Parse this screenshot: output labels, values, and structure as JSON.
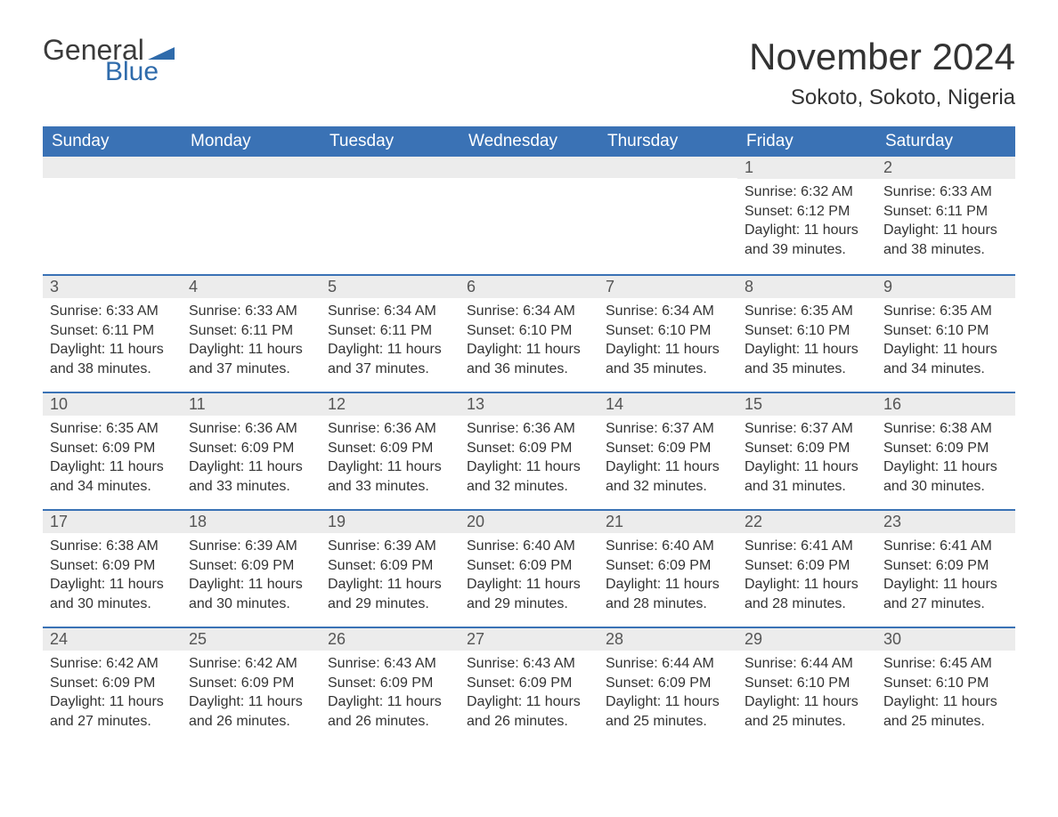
{
  "logo": {
    "word1": "General",
    "word2": "Blue"
  },
  "title": "November 2024",
  "location": "Sokoto, Sokoto, Nigeria",
  "colors": {
    "header_bg": "#3a72b5",
    "header_text": "#ffffff",
    "daynum_bg": "#ececec",
    "border_top": "#3a72b5",
    "body_text": "#333333",
    "logo_gray": "#3b3b3b",
    "logo_blue": "#2f6bab"
  },
  "day_headers": [
    "Sunday",
    "Monday",
    "Tuesday",
    "Wednesday",
    "Thursday",
    "Friday",
    "Saturday"
  ],
  "weeks": [
    [
      null,
      null,
      null,
      null,
      null,
      {
        "n": "1",
        "sunrise": "Sunrise: 6:32 AM",
        "sunset": "Sunset: 6:12 PM",
        "daylight1": "Daylight: 11 hours",
        "daylight2": "and 39 minutes."
      },
      {
        "n": "2",
        "sunrise": "Sunrise: 6:33 AM",
        "sunset": "Sunset: 6:11 PM",
        "daylight1": "Daylight: 11 hours",
        "daylight2": "and 38 minutes."
      }
    ],
    [
      {
        "n": "3",
        "sunrise": "Sunrise: 6:33 AM",
        "sunset": "Sunset: 6:11 PM",
        "daylight1": "Daylight: 11 hours",
        "daylight2": "and 38 minutes."
      },
      {
        "n": "4",
        "sunrise": "Sunrise: 6:33 AM",
        "sunset": "Sunset: 6:11 PM",
        "daylight1": "Daylight: 11 hours",
        "daylight2": "and 37 minutes."
      },
      {
        "n": "5",
        "sunrise": "Sunrise: 6:34 AM",
        "sunset": "Sunset: 6:11 PM",
        "daylight1": "Daylight: 11 hours",
        "daylight2": "and 37 minutes."
      },
      {
        "n": "6",
        "sunrise": "Sunrise: 6:34 AM",
        "sunset": "Sunset: 6:10 PM",
        "daylight1": "Daylight: 11 hours",
        "daylight2": "and 36 minutes."
      },
      {
        "n": "7",
        "sunrise": "Sunrise: 6:34 AM",
        "sunset": "Sunset: 6:10 PM",
        "daylight1": "Daylight: 11 hours",
        "daylight2": "and 35 minutes."
      },
      {
        "n": "8",
        "sunrise": "Sunrise: 6:35 AM",
        "sunset": "Sunset: 6:10 PM",
        "daylight1": "Daylight: 11 hours",
        "daylight2": "and 35 minutes."
      },
      {
        "n": "9",
        "sunrise": "Sunrise: 6:35 AM",
        "sunset": "Sunset: 6:10 PM",
        "daylight1": "Daylight: 11 hours",
        "daylight2": "and 34 minutes."
      }
    ],
    [
      {
        "n": "10",
        "sunrise": "Sunrise: 6:35 AM",
        "sunset": "Sunset: 6:09 PM",
        "daylight1": "Daylight: 11 hours",
        "daylight2": "and 34 minutes."
      },
      {
        "n": "11",
        "sunrise": "Sunrise: 6:36 AM",
        "sunset": "Sunset: 6:09 PM",
        "daylight1": "Daylight: 11 hours",
        "daylight2": "and 33 minutes."
      },
      {
        "n": "12",
        "sunrise": "Sunrise: 6:36 AM",
        "sunset": "Sunset: 6:09 PM",
        "daylight1": "Daylight: 11 hours",
        "daylight2": "and 33 minutes."
      },
      {
        "n": "13",
        "sunrise": "Sunrise: 6:36 AM",
        "sunset": "Sunset: 6:09 PM",
        "daylight1": "Daylight: 11 hours",
        "daylight2": "and 32 minutes."
      },
      {
        "n": "14",
        "sunrise": "Sunrise: 6:37 AM",
        "sunset": "Sunset: 6:09 PM",
        "daylight1": "Daylight: 11 hours",
        "daylight2": "and 32 minutes."
      },
      {
        "n": "15",
        "sunrise": "Sunrise: 6:37 AM",
        "sunset": "Sunset: 6:09 PM",
        "daylight1": "Daylight: 11 hours",
        "daylight2": "and 31 minutes."
      },
      {
        "n": "16",
        "sunrise": "Sunrise: 6:38 AM",
        "sunset": "Sunset: 6:09 PM",
        "daylight1": "Daylight: 11 hours",
        "daylight2": "and 30 minutes."
      }
    ],
    [
      {
        "n": "17",
        "sunrise": "Sunrise: 6:38 AM",
        "sunset": "Sunset: 6:09 PM",
        "daylight1": "Daylight: 11 hours",
        "daylight2": "and 30 minutes."
      },
      {
        "n": "18",
        "sunrise": "Sunrise: 6:39 AM",
        "sunset": "Sunset: 6:09 PM",
        "daylight1": "Daylight: 11 hours",
        "daylight2": "and 30 minutes."
      },
      {
        "n": "19",
        "sunrise": "Sunrise: 6:39 AM",
        "sunset": "Sunset: 6:09 PM",
        "daylight1": "Daylight: 11 hours",
        "daylight2": "and 29 minutes."
      },
      {
        "n": "20",
        "sunrise": "Sunrise: 6:40 AM",
        "sunset": "Sunset: 6:09 PM",
        "daylight1": "Daylight: 11 hours",
        "daylight2": "and 29 minutes."
      },
      {
        "n": "21",
        "sunrise": "Sunrise: 6:40 AM",
        "sunset": "Sunset: 6:09 PM",
        "daylight1": "Daylight: 11 hours",
        "daylight2": "and 28 minutes."
      },
      {
        "n": "22",
        "sunrise": "Sunrise: 6:41 AM",
        "sunset": "Sunset: 6:09 PM",
        "daylight1": "Daylight: 11 hours",
        "daylight2": "and 28 minutes."
      },
      {
        "n": "23",
        "sunrise": "Sunrise: 6:41 AM",
        "sunset": "Sunset: 6:09 PM",
        "daylight1": "Daylight: 11 hours",
        "daylight2": "and 27 minutes."
      }
    ],
    [
      {
        "n": "24",
        "sunrise": "Sunrise: 6:42 AM",
        "sunset": "Sunset: 6:09 PM",
        "daylight1": "Daylight: 11 hours",
        "daylight2": "and 27 minutes."
      },
      {
        "n": "25",
        "sunrise": "Sunrise: 6:42 AM",
        "sunset": "Sunset: 6:09 PM",
        "daylight1": "Daylight: 11 hours",
        "daylight2": "and 26 minutes."
      },
      {
        "n": "26",
        "sunrise": "Sunrise: 6:43 AM",
        "sunset": "Sunset: 6:09 PM",
        "daylight1": "Daylight: 11 hours",
        "daylight2": "and 26 minutes."
      },
      {
        "n": "27",
        "sunrise": "Sunrise: 6:43 AM",
        "sunset": "Sunset: 6:09 PM",
        "daylight1": "Daylight: 11 hours",
        "daylight2": "and 26 minutes."
      },
      {
        "n": "28",
        "sunrise": "Sunrise: 6:44 AM",
        "sunset": "Sunset: 6:09 PM",
        "daylight1": "Daylight: 11 hours",
        "daylight2": "and 25 minutes."
      },
      {
        "n": "29",
        "sunrise": "Sunrise: 6:44 AM",
        "sunset": "Sunset: 6:10 PM",
        "daylight1": "Daylight: 11 hours",
        "daylight2": "and 25 minutes."
      },
      {
        "n": "30",
        "sunrise": "Sunrise: 6:45 AM",
        "sunset": "Sunset: 6:10 PM",
        "daylight1": "Daylight: 11 hours",
        "daylight2": "and 25 minutes."
      }
    ]
  ]
}
